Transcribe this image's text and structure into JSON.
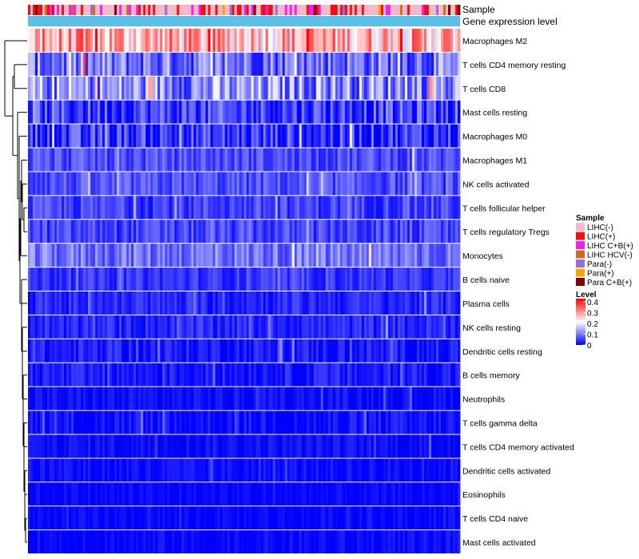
{
  "chart_data": {
    "type": "heatmap",
    "annotations": {
      "sample_label": "Sample",
      "gene_label": "Gene expression level",
      "gene_color": "#5bc0e8"
    },
    "rows": [
      {
        "label": "Macrophages M2",
        "mean": 0.26,
        "spread": 0.1
      },
      {
        "label": "T cells CD4 memory resting",
        "mean": 0.09,
        "spread": 0.08
      },
      {
        "label": "T cells CD8",
        "mean": 0.11,
        "spread": 0.09
      },
      {
        "label": "Mast cells resting",
        "mean": 0.05,
        "spread": 0.07
      },
      {
        "label": "Macrophages M0",
        "mean": 0.04,
        "spread": 0.07
      },
      {
        "label": "Macrophages M1",
        "mean": 0.06,
        "spread": 0.04
      },
      {
        "label": "NK cells activated",
        "mean": 0.06,
        "spread": 0.04
      },
      {
        "label": "T cells follicular helper",
        "mean": 0.05,
        "spread": 0.04
      },
      {
        "label": "T cells regulatory  Tregs",
        "mean": 0.05,
        "spread": 0.04
      },
      {
        "label": "Monocytes",
        "mean": 0.09,
        "spread": 0.05
      },
      {
        "label": "B cells naive",
        "mean": 0.04,
        "spread": 0.03
      },
      {
        "label": "Plasma cells",
        "mean": 0.03,
        "spread": 0.03
      },
      {
        "label": "NK cells resting",
        "mean": 0.03,
        "spread": 0.03
      },
      {
        "label": "Dendritic cells resting",
        "mean": 0.02,
        "spread": 0.03
      },
      {
        "label": "B cells memory",
        "mean": 0.02,
        "spread": 0.03
      },
      {
        "label": "Neutrophils",
        "mean": 0.01,
        "spread": 0.02
      },
      {
        "label": "T cells gamma delta",
        "mean": 0.01,
        "spread": 0.03
      },
      {
        "label": "T cells CD4 memory activated",
        "mean": 0.01,
        "spread": 0.02
      },
      {
        "label": "Dendritic cells activated",
        "mean": 0.01,
        "spread": 0.02
      },
      {
        "label": "Eosinophils",
        "mean": 0.005,
        "spread": 0.015
      },
      {
        "label": "T cells CD4 naive",
        "mean": 0.005,
        "spread": 0.015
      },
      {
        "label": "Mast cells activated",
        "mean": 0.005,
        "spread": 0.02
      }
    ],
    "n_samples": 180,
    "legend_sample": {
      "title": "Sample",
      "items": [
        {
          "label": "LIHC(-)",
          "color": "#f5b8c8"
        },
        {
          "label": "LIHC(+)",
          "color": "#ee1111"
        },
        {
          "label": "LIHC C+B(+)",
          "color": "#ee22ee"
        },
        {
          "label": "LIHC HCV(-)",
          "color": "#d2691e"
        },
        {
          "label": "Para(-)",
          "color": "#9370db"
        },
        {
          "label": "Para(+)",
          "color": "#ffa500"
        },
        {
          "label": "Para C+B(+)",
          "color": "#800000"
        }
      ]
    },
    "legend_level": {
      "title": "Level",
      "ticks": [
        "0.4",
        "0.3",
        "0.2",
        "0.1",
        "0"
      ],
      "colors": [
        "#0000ff",
        "#ffffff",
        "#ff0000"
      ],
      "range": [
        0,
        0.4
      ]
    }
  }
}
